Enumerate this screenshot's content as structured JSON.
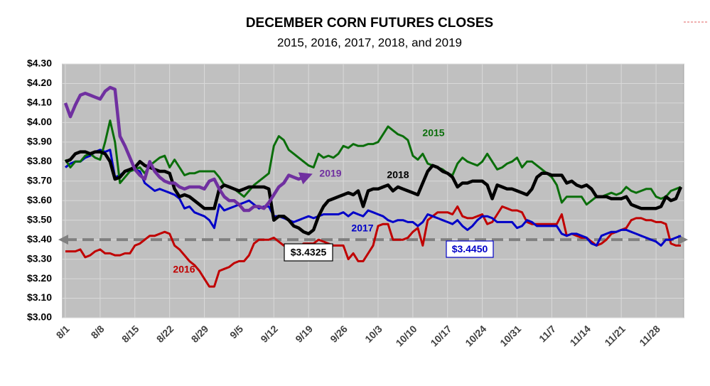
{
  "chart_data": {
    "type": "line",
    "title": "DECEMBER CORN FUTURES CLOSES",
    "subtitle": "2015, 2016, 2017, 2018, and 2019",
    "categories": [
      "8/1",
      null,
      null,
      null,
      null,
      null,
      null,
      "8/8",
      null,
      null,
      null,
      null,
      null,
      null,
      "8/15",
      null,
      null,
      null,
      null,
      null,
      null,
      "8/22",
      null,
      null,
      null,
      null,
      null,
      null,
      "8/29",
      null,
      null,
      null,
      null,
      null,
      null,
      "9/5",
      null,
      null,
      null,
      null,
      null,
      null,
      "9/12",
      null,
      null,
      null,
      null,
      null,
      null,
      "9/19",
      null,
      null,
      null,
      null,
      null,
      null,
      "9/26",
      null,
      null,
      null,
      null,
      null,
      null,
      "10/3",
      null,
      null,
      null,
      null,
      null,
      null,
      "10/10",
      null,
      null,
      null,
      null,
      null,
      null,
      "10/17",
      null,
      null,
      null,
      null,
      null,
      null,
      "10/24",
      null,
      null,
      null,
      null,
      null,
      null,
      "10/31",
      null,
      null,
      null,
      null,
      null,
      null,
      "11/7",
      null,
      null,
      null,
      null,
      null,
      null,
      "11/14",
      null,
      null,
      null,
      null,
      null,
      null,
      "11/21",
      null,
      null,
      null,
      null,
      null,
      null,
      "11/28",
      null,
      null,
      null,
      null,
      null
    ],
    "series": [
      {
        "name": "2015",
        "color": "#0a6e0a",
        "values": [
          3.81,
          3.77,
          3.8,
          3.8,
          3.83,
          3.84,
          3.82,
          3.81,
          3.9,
          4.01,
          3.9,
          3.69,
          3.72,
          3.75,
          3.76,
          3.77,
          3.74,
          3.78,
          3.8,
          3.82,
          3.83,
          3.77,
          3.81,
          3.77,
          3.73,
          3.74,
          3.74,
          3.75,
          3.75,
          3.75,
          3.75,
          3.72,
          3.68,
          3.67,
          3.66,
          3.64,
          3.62,
          3.65,
          3.68,
          3.7,
          3.72,
          3.74,
          3.88,
          3.93,
          3.91,
          3.86,
          3.84,
          3.82,
          3.8,
          3.78,
          3.77,
          3.84,
          3.82,
          3.83,
          3.82,
          3.84,
          3.88,
          3.87,
          3.89,
          3.88,
          3.88,
          3.89,
          3.89,
          3.9,
          3.94,
          3.98,
          3.96,
          3.94,
          3.93,
          3.91,
          3.83,
          3.81,
          3.84,
          3.79,
          3.78,
          3.77,
          3.76,
          3.74,
          3.73,
          3.79,
          3.82,
          3.8,
          3.79,
          3.78,
          3.8,
          3.84,
          3.8,
          3.76,
          3.77,
          3.79,
          3.8,
          3.82,
          3.77,
          3.8,
          3.8,
          3.78,
          3.76,
          3.74,
          3.72,
          3.68,
          3.59,
          3.62,
          3.62,
          3.62,
          3.62,
          3.58,
          3.6,
          3.62,
          3.62,
          3.63,
          3.64,
          3.63,
          3.64,
          3.67,
          3.65,
          3.64,
          3.65,
          3.66,
          3.66,
          3.62,
          3.61,
          3.62,
          3.65,
          3.66,
          3.67
        ]
      },
      {
        "name": "2016",
        "color": "#c00000",
        "values": [
          3.34,
          3.34,
          3.34,
          3.35,
          3.31,
          3.32,
          3.34,
          3.35,
          3.33,
          3.33,
          3.32,
          3.32,
          3.33,
          3.33,
          3.37,
          3.38,
          3.4,
          3.42,
          3.42,
          3.43,
          3.44,
          3.43,
          3.37,
          3.35,
          3.32,
          3.29,
          3.27,
          3.24,
          3.2,
          3.16,
          3.16,
          3.24,
          3.25,
          3.26,
          3.28,
          3.29,
          3.29,
          3.32,
          3.38,
          3.4,
          3.4,
          3.4,
          3.41,
          3.39,
          3.37,
          3.37,
          3.36,
          3.36,
          3.38,
          3.38,
          3.38,
          3.4,
          3.39,
          3.38,
          3.37,
          3.37,
          3.37,
          3.3,
          3.33,
          3.29,
          3.29,
          3.33,
          3.37,
          3.47,
          3.48,
          3.48,
          3.4,
          3.4,
          3.4,
          3.41,
          3.44,
          3.46,
          3.37,
          3.5,
          3.52,
          3.54,
          3.54,
          3.54,
          3.53,
          3.57,
          3.52,
          3.51,
          3.51,
          3.52,
          3.53,
          3.48,
          3.49,
          3.53,
          3.57,
          3.56,
          3.55,
          3.55,
          3.54,
          3.49,
          3.48,
          3.48,
          3.48,
          3.48,
          3.48,
          3.48,
          3.53,
          3.42,
          3.43,
          3.42,
          3.41,
          3.41,
          3.39,
          3.37,
          3.38,
          3.4,
          3.43,
          3.44,
          3.45,
          3.46,
          3.5,
          3.51,
          3.51,
          3.5,
          3.5,
          3.49,
          3.49,
          3.48,
          3.38,
          3.37,
          3.37
        ]
      },
      {
        "name": "2017",
        "color": "#0000c8",
        "values": [
          3.77,
          3.79,
          3.8,
          3.8,
          3.82,
          3.83,
          3.85,
          3.86,
          3.85,
          3.86,
          3.72,
          3.73,
          3.75,
          3.75,
          3.76,
          3.75,
          3.69,
          3.67,
          3.65,
          3.66,
          3.65,
          3.64,
          3.63,
          3.61,
          3.56,
          3.57,
          3.54,
          3.53,
          3.52,
          3.5,
          3.46,
          3.58,
          3.55,
          3.56,
          3.57,
          3.58,
          3.59,
          3.6,
          3.58,
          3.56,
          3.57,
          3.57,
          3.52,
          3.52,
          3.51,
          3.5,
          3.49,
          3.5,
          3.51,
          3.52,
          3.51,
          3.52,
          3.53,
          3.53,
          3.53,
          3.53,
          3.54,
          3.52,
          3.54,
          3.53,
          3.52,
          3.55,
          3.54,
          3.53,
          3.52,
          3.5,
          3.49,
          3.5,
          3.5,
          3.49,
          3.49,
          3.47,
          3.49,
          3.53,
          3.52,
          3.51,
          3.5,
          3.49,
          3.48,
          3.5,
          3.47,
          3.45,
          3.47,
          3.5,
          3.52,
          3.52,
          3.51,
          3.49,
          3.49,
          3.49,
          3.49,
          3.46,
          3.47,
          3.5,
          3.49,
          3.47,
          3.47,
          3.47,
          3.47,
          3.47,
          3.43,
          3.42,
          3.43,
          3.43,
          3.42,
          3.41,
          3.38,
          3.37,
          3.42,
          3.43,
          3.44,
          3.44,
          3.45,
          3.45,
          3.44,
          3.43,
          3.42,
          3.41,
          3.4,
          3.39,
          3.37,
          3.4,
          3.4,
          3.41,
          3.42
        ]
      },
      {
        "name": "2018",
        "color": "#000000",
        "values": [
          3.8,
          3.81,
          3.84,
          3.85,
          3.85,
          3.84,
          3.85,
          3.85,
          3.84,
          3.8,
          3.71,
          3.72,
          3.75,
          3.76,
          3.77,
          3.8,
          3.78,
          3.77,
          3.76,
          3.75,
          3.75,
          3.74,
          3.66,
          3.62,
          3.63,
          3.62,
          3.6,
          3.58,
          3.56,
          3.56,
          3.56,
          3.66,
          3.68,
          3.67,
          3.66,
          3.65,
          3.66,
          3.67,
          3.67,
          3.67,
          3.67,
          3.66,
          3.5,
          3.52,
          3.52,
          3.5,
          3.47,
          3.46,
          3.44,
          3.43,
          3.45,
          3.52,
          3.57,
          3.6,
          3.61,
          3.62,
          3.63,
          3.64,
          3.63,
          3.65,
          3.57,
          3.65,
          3.66,
          3.66,
          3.67,
          3.68,
          3.65,
          3.67,
          3.66,
          3.65,
          3.64,
          3.63,
          3.69,
          3.75,
          3.78,
          3.77,
          3.75,
          3.74,
          3.72,
          3.67,
          3.69,
          3.69,
          3.7,
          3.7,
          3.7,
          3.68,
          3.61,
          3.68,
          3.67,
          3.66,
          3.66,
          3.65,
          3.64,
          3.63,
          3.66,
          3.72,
          3.74,
          3.74,
          3.73,
          3.73,
          3.73,
          3.69,
          3.7,
          3.68,
          3.67,
          3.68,
          3.66,
          3.62,
          3.62,
          3.62,
          3.61,
          3.61,
          3.61,
          3.62,
          3.58,
          3.57,
          3.56,
          3.56,
          3.56,
          3.56,
          3.57,
          3.62,
          3.6,
          3.61,
          3.67
        ]
      },
      {
        "name": "2019",
        "color": "#7030a0",
        "values": [
          4.1,
          4.03,
          4.09,
          4.14,
          4.15,
          4.14,
          4.13,
          4.12,
          4.16,
          4.18,
          4.17,
          3.93,
          3.88,
          3.82,
          3.76,
          3.73,
          3.71,
          3.8,
          3.75,
          3.72,
          3.7,
          3.69,
          3.69,
          3.67,
          3.66,
          3.67,
          3.67,
          3.67,
          3.66,
          3.7,
          3.71,
          3.66,
          3.62,
          3.6,
          3.6,
          3.58,
          3.55,
          3.55,
          3.57,
          3.57,
          3.56,
          3.59,
          3.63,
          3.67,
          3.69,
          3.73,
          3.72,
          3.71,
          3.72,
          null,
          null,
          null,
          null,
          null,
          null,
          null,
          null,
          null,
          null,
          null,
          null,
          null,
          null,
          null,
          null,
          null,
          null,
          null,
          null,
          null,
          null,
          null,
          null,
          null,
          null,
          null,
          null,
          null,
          null,
          null,
          null,
          null,
          null,
          null,
          null,
          null,
          null,
          null,
          null,
          null,
          null,
          null,
          null,
          null,
          null,
          null,
          null,
          null,
          null,
          null,
          null,
          null,
          null,
          null,
          null,
          null,
          null,
          null,
          null,
          null,
          null,
          null,
          null,
          null,
          null,
          null,
          null,
          null,
          null,
          null,
          null,
          null,
          null,
          null,
          null
        ]
      }
    ],
    "ylim": [
      3.0,
      4.3
    ],
    "yticks": [
      {
        "value": 3.0,
        "label": "$3.00"
      },
      {
        "value": 3.1,
        "label": "$3.10"
      },
      {
        "value": 3.2,
        "label": "$3.20"
      },
      {
        "value": 3.3,
        "label": "$3.30"
      },
      {
        "value": 3.4,
        "label": "$3.40"
      },
      {
        "value": 3.5,
        "label": "$3.50"
      },
      {
        "value": 3.6,
        "label": "$3.60"
      },
      {
        "value": 3.7,
        "label": "$3.70"
      },
      {
        "value": 3.8,
        "label": "$3.80"
      },
      {
        "value": 3.9,
        "label": "$3.90"
      },
      {
        "value": 4.0,
        "label": "$4.00"
      },
      {
        "value": 4.1,
        "label": "$4.10"
      },
      {
        "value": 4.2,
        "label": "$4.20"
      },
      {
        "value": 4.3,
        "label": "$4.30"
      }
    ],
    "grid": true,
    "plot_background": "#c0c0c0",
    "reference_line": {
      "value": 3.4,
      "color": "#808080"
    },
    "annotations": [
      {
        "text": "$3.4325",
        "color": "#000000"
      },
      {
        "text": "$3.4450",
        "color": "#0000c8"
      }
    ]
  }
}
